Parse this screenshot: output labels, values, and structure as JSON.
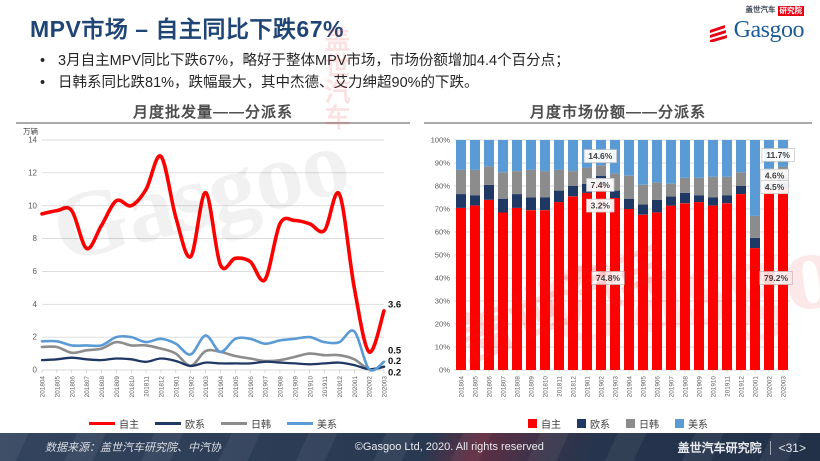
{
  "slide": {
    "title": "MPV市场 – 自主同比下跌67%",
    "bullets": [
      "3月自主MPV同比下跌67%，略好于整体MPV市场，市场份额增加4.4个百分点；",
      "日韩系同比跌81%，跌幅最大，其中杰德、艾力绅超90%的下跌。"
    ]
  },
  "logo": {
    "brand_cn": "盖世汽车",
    "brand_unit": "研究院",
    "wordmark": "Gasgoo"
  },
  "watermarks": {
    "left_gasgoo": "Gasgoo",
    "right_cn": "盖世汽车",
    "right_gasgoo": "Gasgoo",
    "bullet_cn": "盖世汽车"
  },
  "footer": {
    "source": "数据来源：盖世汽车研究院、中汽协",
    "copyright": "©Gasgoo Ltd, 2020. All rights reserved",
    "org": "盖世汽车研究院",
    "page": "<31>"
  },
  "colors": {
    "title_blue": "#1F4575",
    "zizhu_red": "#FE0000",
    "ouxi_navy": "#1F3864",
    "rihan_gray": "#8C8C8C",
    "meixi_blue": "#5B9BD5",
    "grid": "#D9D9D9",
    "axis_text": "#595959"
  },
  "chart_data": [
    {
      "type": "line",
      "title": "月度批发量——分派系",
      "ylabel": "万辆",
      "ylim": [
        0,
        14
      ],
      "yticks": [
        0,
        2,
        4,
        6,
        8,
        10,
        12,
        14
      ],
      "grid": true,
      "legend_position": "bottom",
      "categories": [
        "201804",
        "201805",
        "201806",
        "201807",
        "201808",
        "201809",
        "201810",
        "201811",
        "201812",
        "201901",
        "201902",
        "201903",
        "201904",
        "201905",
        "201906",
        "201907",
        "201908",
        "201909",
        "201910",
        "201911",
        "201912",
        "202001",
        "202002",
        "202003"
      ],
      "series": [
        {
          "name": "自主",
          "key": "zizhu",
          "color": "#FE0000",
          "line_width": 3.6,
          "end_label": "3.6",
          "end_label_v": 4.0,
          "values": [
            9.5,
            9.7,
            9.7,
            7.4,
            8.8,
            10.3,
            10.0,
            11.0,
            13.0,
            9.3,
            6.9,
            10.8,
            6.4,
            6.8,
            6.6,
            5.5,
            8.9,
            9.1,
            8.9,
            8.5,
            10.7,
            5.0,
            1.1,
            3.6
          ]
        },
        {
          "name": "欧系",
          "key": "ouxi",
          "color": "#1F3864",
          "line_width": 2.3,
          "end_label": "0.2",
          "end_label_v": -0.15,
          "values": [
            0.6,
            0.65,
            0.75,
            0.65,
            0.6,
            0.7,
            0.65,
            0.5,
            0.7,
            0.55,
            0.25,
            0.45,
            0.4,
            0.4,
            0.4,
            0.5,
            0.45,
            0.4,
            0.35,
            0.4,
            0.45,
            0.3,
            0.05,
            0.2
          ]
        },
        {
          "name": "日韩",
          "key": "rihan",
          "color": "#8C8C8C",
          "line_width": 2.6,
          "end_label": "0.2",
          "end_label_v": 0.55,
          "values": [
            1.4,
            1.4,
            1.05,
            1.2,
            1.3,
            1.7,
            1.5,
            1.5,
            1.3,
            1.0,
            0.25,
            1.15,
            1.1,
            0.85,
            0.7,
            0.55,
            0.6,
            0.8,
            1.0,
            0.9,
            0.9,
            0.65,
            0.05,
            0.2
          ]
        },
        {
          "name": "美系",
          "key": "meixi",
          "color": "#5B9BD5",
          "line_width": 2.6,
          "end_label": "0.5",
          "end_label_v": 1.2,
          "values": [
            1.75,
            1.75,
            1.5,
            1.5,
            1.5,
            2.0,
            2.0,
            1.7,
            1.9,
            1.6,
            0.95,
            2.1,
            1.1,
            1.9,
            1.9,
            1.6,
            1.8,
            1.9,
            2.0,
            1.7,
            1.7,
            2.35,
            0.05,
            0.5
          ]
        }
      ]
    },
    {
      "type": "bar",
      "subtype": "stacked-100",
      "title": "月度市场份额——分派系",
      "ylim_pct": [
        0,
        100
      ],
      "ytick_labels": [
        "0%",
        "10%",
        "20%",
        "30%",
        "40%",
        "50%",
        "60%",
        "70%",
        "80%",
        "90%",
        "100%"
      ],
      "grid": true,
      "legend_position": "bottom",
      "categories": [
        "201804",
        "201805",
        "201806",
        "201807",
        "201808",
        "201809",
        "201810",
        "201811",
        "201812",
        "201901",
        "201902",
        "201903",
        "201904",
        "201905",
        "201906",
        "201907",
        "201908",
        "201909",
        "201910",
        "201911",
        "201912",
        "202001",
        "202002",
        "202003"
      ],
      "series": [
        {
          "name": "自主",
          "key": "zizhu",
          "color": "#FE0000",
          "values": [
            70.5,
            71.5,
            74.0,
            68.5,
            70.5,
            69.5,
            69.5,
            73.0,
            75.5,
            77.0,
            81.0,
            74.8,
            70.0,
            67.5,
            68.5,
            71.5,
            72.5,
            73.0,
            71.5,
            72.5,
            76.5,
            53.0,
            78.0,
            79.2
          ]
        },
        {
          "name": "欧系",
          "key": "ouxi",
          "color": "#1F3864",
          "values": [
            6.0,
            4.5,
            6.5,
            6.0,
            6.0,
            5.5,
            5.5,
            5.0,
            4.5,
            4.0,
            3.5,
            3.2,
            4.5,
            4.5,
            5.5,
            4.0,
            4.5,
            3.0,
            3.5,
            3.5,
            3.5,
            4.5,
            3.0,
            4.5
          ]
        },
        {
          "name": "日韩",
          "key": "rihan",
          "color": "#8C8C8C",
          "values": [
            10.5,
            11.0,
            8.0,
            11.5,
            10.0,
            12.0,
            11.5,
            9.0,
            6.5,
            7.0,
            4.5,
            7.4,
            10.0,
            8.5,
            7.5,
            5.5,
            6.5,
            7.5,
            9.0,
            8.0,
            6.0,
            9.5,
            6.5,
            4.6
          ]
        },
        {
          "name": "美系",
          "key": "meixi",
          "color": "#5B9BD5",
          "values": [
            13.0,
            13.0,
            11.5,
            14.0,
            13.5,
            13.0,
            13.5,
            13.0,
            13.5,
            12.0,
            11.0,
            14.6,
            15.5,
            19.5,
            18.5,
            19.0,
            16.5,
            16.5,
            16.0,
            16.0,
            14.0,
            33.0,
            12.5,
            11.7
          ]
        }
      ],
      "callouts": [
        {
          "text": "14.6%",
          "month": "201903",
          "month_index": 11,
          "y_pct": 93.0,
          "dx": -1.05
        },
        {
          "text": "7.4%",
          "month": "201903",
          "month_index": 11,
          "y_pct": 80.5,
          "dx": -1.05
        },
        {
          "text": "3.2%",
          "month": "201903",
          "month_index": 11,
          "y_pct": 71.5,
          "dx": -1.05
        },
        {
          "text": "74.8%",
          "month": "201903",
          "month_index": 11,
          "y_pct": 40.0,
          "dx": -0.5
        },
        {
          "text": "11.7%",
          "month": "202003",
          "month_index": 23,
          "y_pct": 93.5,
          "dx": -0.35
        },
        {
          "text": "4.6%",
          "month": "202003",
          "month_index": 23,
          "y_pct": 84.5,
          "dx": -0.6
        },
        {
          "text": "4.5%",
          "month": "202003",
          "month_index": 23,
          "y_pct": 79.5,
          "dx": -0.6
        },
        {
          "text": "79.2%",
          "month": "202003",
          "month_index": 23,
          "y_pct": 40.0,
          "dx": -0.5
        }
      ]
    }
  ]
}
